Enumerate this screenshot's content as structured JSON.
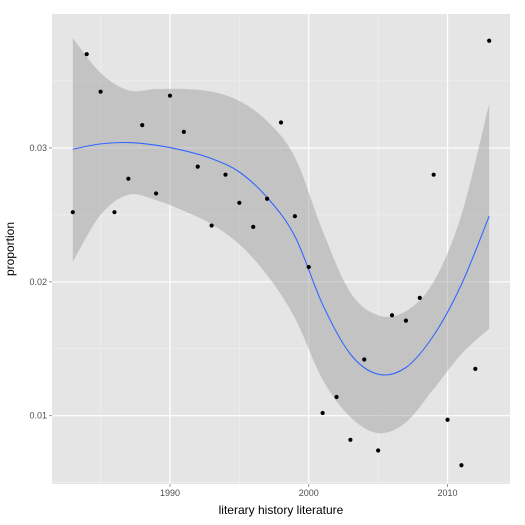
{
  "chart_data": {
    "type": "scatter",
    "title": "",
    "xlabel": "literary history literature",
    "ylabel": "proportion",
    "xlim": [
      1981.5,
      2014.5
    ],
    "ylim": [
      0.0049,
      0.04
    ],
    "x_ticks": [
      1990,
      2000,
      2010
    ],
    "y_ticks": [
      0.01,
      0.02,
      0.03
    ],
    "x_tick_labels": [
      "1990",
      "2000",
      "2010"
    ],
    "y_tick_labels": [
      "0.01",
      "0.02",
      "0.03"
    ],
    "grid": true,
    "legend": "none",
    "colors": {
      "panel": "#e5e5e5",
      "grid_major": "#ffffff",
      "grid_minor": "#f2f2f2",
      "points": "#000000",
      "smooth_line": "#3366ff",
      "ribbon": "#999999"
    },
    "points": [
      {
        "x": 1983,
        "y": 0.0252
      },
      {
        "x": 1984,
        "y": 0.037
      },
      {
        "x": 1985,
        "y": 0.0342
      },
      {
        "x": 1986,
        "y": 0.0252
      },
      {
        "x": 1987,
        "y": 0.0277
      },
      {
        "x": 1988,
        "y": 0.0317
      },
      {
        "x": 1989,
        "y": 0.0266
      },
      {
        "x": 1990,
        "y": 0.0339
      },
      {
        "x": 1991,
        "y": 0.0312
      },
      {
        "x": 1992,
        "y": 0.0286
      },
      {
        "x": 1993,
        "y": 0.0242
      },
      {
        "x": 1994,
        "y": 0.028
      },
      {
        "x": 1995,
        "y": 0.0259
      },
      {
        "x": 1996,
        "y": 0.0241
      },
      {
        "x": 1997,
        "y": 0.0262
      },
      {
        "x": 1998,
        "y": 0.0319
      },
      {
        "x": 1999,
        "y": 0.0249
      },
      {
        "x": 2000,
        "y": 0.0211
      },
      {
        "x": 2001,
        "y": 0.0102
      },
      {
        "x": 2002,
        "y": 0.0114
      },
      {
        "x": 2003,
        "y": 0.0082
      },
      {
        "x": 2004,
        "y": 0.0142
      },
      {
        "x": 2005,
        "y": 0.0074
      },
      {
        "x": 2006,
        "y": 0.0175
      },
      {
        "x": 2007,
        "y": 0.0171
      },
      {
        "x": 2008,
        "y": 0.0188
      },
      {
        "x": 2009,
        "y": 0.028
      },
      {
        "x": 2010,
        "y": 0.0097
      },
      {
        "x": 2011,
        "y": 0.0063
      },
      {
        "x": 2012,
        "y": 0.0135
      },
      {
        "x": 2013,
        "y": 0.038
      }
    ],
    "smooth": {
      "x": [
        1983,
        1985,
        1987,
        1989,
        1991,
        1993,
        1995,
        1997,
        1999,
        2001,
        2003,
        2005,
        2007,
        2009,
        2011,
        2013
      ],
      "y": [
        0.0299,
        0.0303,
        0.0304,
        0.0302,
        0.0298,
        0.0292,
        0.0282,
        0.0263,
        0.0234,
        0.0183,
        0.0146,
        0.0131,
        0.0136,
        0.016,
        0.0198,
        0.0249
      ],
      "lower": [
        0.0215,
        0.025,
        0.0265,
        0.0261,
        0.0253,
        0.0243,
        0.0228,
        0.0205,
        0.0173,
        0.0127,
        0.0099,
        0.0087,
        0.0095,
        0.012,
        0.0146,
        0.0165
      ],
      "upper": [
        0.0382,
        0.0356,
        0.0343,
        0.0344,
        0.0344,
        0.0342,
        0.0335,
        0.032,
        0.0293,
        0.0238,
        0.0192,
        0.0175,
        0.0178,
        0.02,
        0.025,
        0.0333
      ]
    }
  }
}
